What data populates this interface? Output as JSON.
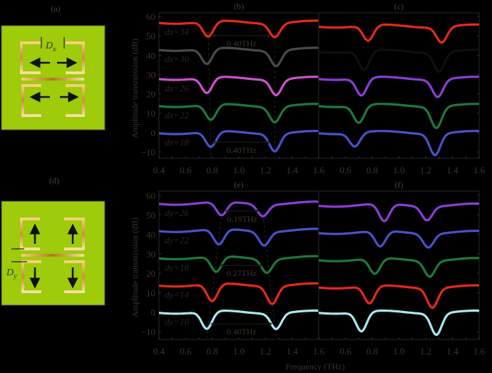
{
  "panels": {
    "a": {
      "label": "(a)",
      "dimension_label": "D",
      "dimension_sub": "x",
      "arrows": [
        "left",
        "right",
        "left",
        "right"
      ]
    },
    "d": {
      "label": "(d)",
      "dimension_label": "D",
      "dimension_sub": "y",
      "arrows": [
        "up",
        "up",
        "down",
        "down"
      ]
    }
  },
  "colors": {
    "substrate": "#9ecb0a",
    "metal": "#e8b54a",
    "red": "#e8281c",
    "gray": "#4a4a4a",
    "magenta": "#d050d0",
    "violet": "#8b3ed6",
    "green": "#1d7a3a",
    "blue": "#4a52c8",
    "cyan": "#a8e8f0",
    "black": "#101010"
  },
  "axes": {
    "ylabel": "Amplitude transmission (dB)",
    "xlabel": "Frequency (THz)",
    "yticks": [
      "60",
      "50",
      "40",
      "30",
      "20",
      "10",
      "0",
      "−10"
    ],
    "xticks_left": [
      "0.4",
      "0.6",
      "0.8",
      "1.0",
      "1.2",
      "1.4",
      "1.6"
    ],
    "xticks_right": [
      "0.6",
      "0.8",
      "1.0",
      "1.2",
      "1.4",
      "1.6"
    ],
    "shared_boundary_tick": "1.6"
  },
  "chart_data": [
    {
      "id": "b",
      "title": "(b)",
      "type": "line",
      "xlabel": "Frequency (THz)",
      "ylabel": "Amplitude transmission (dB)",
      "xlim": [
        0.4,
        1.6
      ],
      "ylim": [
        -13,
        62
      ],
      "annotations": [
        {
          "text": "0.40THz",
          "between": [
            0.77,
            1.27
          ],
          "y": 50
        },
        {
          "text": "0.40THz",
          "between": [
            0.77,
            1.27
          ],
          "y": -5
        }
      ],
      "series": [
        {
          "name": "dx=34",
          "color": "#e8281c",
          "baseline": 57,
          "dips": [
            [
              0.77,
              49
            ],
            [
              1.27,
              50
            ]
          ]
        },
        {
          "name": "dx=30",
          "color": "#4a4a4a",
          "baseline": 43,
          "dips": [
            [
              0.76,
              35
            ],
            [
              1.28,
              35
            ]
          ]
        },
        {
          "name": "dx=26",
          "color": "#d050d0",
          "baseline": 28,
          "dips": [
            [
              0.76,
              20
            ],
            [
              1.28,
              20
            ]
          ]
        },
        {
          "name": "dx=22",
          "color": "#1d7a3a",
          "baseline": 14,
          "dips": [
            [
              0.79,
              6
            ],
            [
              1.27,
              6
            ]
          ]
        },
        {
          "name": "dx=18",
          "color": "#4a52c8",
          "baseline": 0,
          "dips": [
            [
              0.79,
              -8
            ],
            [
              1.27,
              -9
            ]
          ]
        }
      ]
    },
    {
      "id": "c",
      "title": "(c)",
      "type": "line",
      "xlabel": "Frequency (THz)",
      "xlim": [
        0.4,
        1.6
      ],
      "ylim": [
        -13,
        62
      ],
      "series": [
        {
          "name": "dx=34",
          "color": "#e8281c",
          "baseline": 55,
          "dips": [
            [
              0.77,
              47
            ],
            [
              1.32,
              47
            ]
          ]
        },
        {
          "name": "dx=30",
          "color": "#101010",
          "baseline": 42,
          "dips": [
            [
              0.74,
              32
            ],
            [
              1.3,
              32
            ]
          ]
        },
        {
          "name": "dx=26",
          "color": "#8b3ed6",
          "baseline": 28,
          "dips": [
            [
              0.72,
              19
            ],
            [
              1.29,
              19
            ]
          ]
        },
        {
          "name": "dx=22",
          "color": "#1d7a3a",
          "baseline": 14,
          "dips": [
            [
              0.7,
              5
            ],
            [
              1.28,
              3
            ]
          ]
        },
        {
          "name": "dx=18",
          "color": "#4a52c8",
          "baseline": 0,
          "dips": [
            [
              0.67,
              -7
            ],
            [
              1.27,
              -11
            ]
          ]
        }
      ]
    },
    {
      "id": "e",
      "title": "(e)",
      "type": "line",
      "xlabel": "Frequency (THz)",
      "ylabel": "Amplitude transmission (dB)",
      "xlim": [
        0.4,
        1.6
      ],
      "ylim": [
        -13,
        62
      ],
      "annotations": [
        {
          "text": "0.19THz",
          "between": [
            0.87,
            1.18
          ],
          "y": 52
        },
        {
          "text": "0.27THz",
          "between": [
            0.83,
            1.21
          ],
          "y": 24
        },
        {
          "text": "0.40THz",
          "between": [
            0.76,
            1.28
          ],
          "y": -6
        }
      ],
      "series": [
        {
          "name": "dy=26",
          "color": "#8b3ed6",
          "baseline": 56,
          "dips": [
            [
              0.87,
              49
            ],
            [
              1.18,
              50
            ]
          ]
        },
        {
          "name": "dy=22",
          "color": "#4a52c8",
          "baseline": 42,
          "dips": [
            [
              0.85,
              34
            ],
            [
              1.19,
              35
            ]
          ]
        },
        {
          "name": "dy=18",
          "color": "#1d7a3a",
          "baseline": 28,
          "dips": [
            [
              0.83,
              20
            ],
            [
              1.21,
              21
            ]
          ]
        },
        {
          "name": "dy=14",
          "color": "#e8281c",
          "baseline": 14,
          "dips": [
            [
              0.8,
              5
            ],
            [
              1.25,
              5
            ]
          ]
        },
        {
          "name": "dy=10",
          "color": "#a8e8f0",
          "baseline": 0,
          "dips": [
            [
              0.76,
              -9
            ],
            [
              1.28,
              -8
            ]
          ]
        }
      ]
    },
    {
      "id": "f",
      "title": "(f)",
      "type": "line",
      "xlabel": "Frequency (THz)",
      "xlim": [
        0.4,
        1.6
      ],
      "ylim": [
        -13,
        62
      ],
      "series": [
        {
          "name": "dy=26",
          "color": "#8b3ed6",
          "baseline": 55,
          "dips": [
            [
              0.89,
              46
            ],
            [
              1.21,
              48
            ]
          ]
        },
        {
          "name": "dy=22",
          "color": "#4a52c8",
          "baseline": 41,
          "dips": [
            [
              0.86,
              33
            ],
            [
              1.22,
              34
            ]
          ]
        },
        {
          "name": "dy=18",
          "color": "#1d7a3a",
          "baseline": 27,
          "dips": [
            [
              0.82,
              19
            ],
            [
              1.23,
              19
            ]
          ]
        },
        {
          "name": "dy=14",
          "color": "#e8281c",
          "baseline": 13,
          "dips": [
            [
              0.78,
              4
            ],
            [
              1.25,
              3
            ]
          ]
        },
        {
          "name": "dy=10",
          "color": "#a8e8f0",
          "baseline": 0,
          "dips": [
            [
              0.72,
              -10
            ],
            [
              1.28,
              -11
            ]
          ]
        }
      ]
    }
  ]
}
